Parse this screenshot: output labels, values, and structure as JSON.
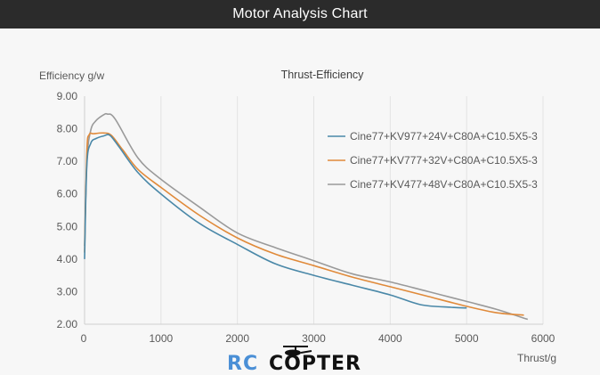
{
  "header": {
    "title": "Motor Analysis Chart"
  },
  "logo": {
    "part1": "RC",
    "part2": "COPTER"
  },
  "chart_data": {
    "type": "line",
    "title": "Thrust-Efficiency",
    "ylabel": "Efficiency g/w",
    "xlabel": "Thrust/g",
    "xlim": [
      0,
      6000
    ],
    "ylim": [
      2,
      9
    ],
    "xticks": [
      "0",
      "1000",
      "2000",
      "3000",
      "4000",
      "5000",
      "6000"
    ],
    "yticks": [
      "2.00",
      "3.00",
      "4.00",
      "5.00",
      "6.00",
      "7.00",
      "8.00",
      "9.00"
    ],
    "grid": "vertical",
    "legend_position": "right",
    "series": [
      {
        "name": "Cine77+KV977+24V+C80A+C10.5X5-3",
        "color": "#4a88a8",
        "points": [
          [
            0,
            4.0
          ],
          [
            30,
            6.9
          ],
          [
            80,
            7.55
          ],
          [
            150,
            7.7
          ],
          [
            250,
            7.78
          ],
          [
            330,
            7.8
          ],
          [
            450,
            7.45
          ],
          [
            700,
            6.65
          ],
          [
            1000,
            6.0
          ],
          [
            1500,
            5.1
          ],
          [
            2000,
            4.45
          ],
          [
            2500,
            3.85
          ],
          [
            3000,
            3.5
          ],
          [
            3500,
            3.2
          ],
          [
            4000,
            2.9
          ],
          [
            4400,
            2.6
          ],
          [
            4800,
            2.52
          ],
          [
            5000,
            2.5
          ]
        ]
      },
      {
        "name": "Cine77+KV777+32V+C80A+C10.5X5-3",
        "color": "#e08a3a",
        "points": [
          [
            0,
            4.2
          ],
          [
            30,
            7.3
          ],
          [
            60,
            7.82
          ],
          [
            120,
            7.85
          ],
          [
            250,
            7.87
          ],
          [
            350,
            7.8
          ],
          [
            500,
            7.35
          ],
          [
            700,
            6.75
          ],
          [
            1000,
            6.2
          ],
          [
            1500,
            5.35
          ],
          [
            2000,
            4.65
          ],
          [
            2500,
            4.15
          ],
          [
            3000,
            3.8
          ],
          [
            3500,
            3.45
          ],
          [
            4000,
            3.15
          ],
          [
            4500,
            2.85
          ],
          [
            5000,
            2.55
          ],
          [
            5400,
            2.35
          ],
          [
            5750,
            2.28
          ]
        ]
      },
      {
        "name": "Cine77+KV477+48V+C80A+C10.5X5-3",
        "color": "#9a9a9a",
        "points": [
          [
            0,
            4.4
          ],
          [
            30,
            7.0
          ],
          [
            80,
            7.95
          ],
          [
            150,
            8.25
          ],
          [
            250,
            8.43
          ],
          [
            300,
            8.45
          ],
          [
            400,
            8.3
          ],
          [
            700,
            7.1
          ],
          [
            1000,
            6.45
          ],
          [
            1500,
            5.6
          ],
          [
            2000,
            4.8
          ],
          [
            2500,
            4.35
          ],
          [
            3000,
            3.95
          ],
          [
            3500,
            3.55
          ],
          [
            4000,
            3.3
          ],
          [
            4500,
            3.0
          ],
          [
            5000,
            2.7
          ],
          [
            5400,
            2.45
          ],
          [
            5800,
            2.15
          ]
        ]
      }
    ]
  }
}
